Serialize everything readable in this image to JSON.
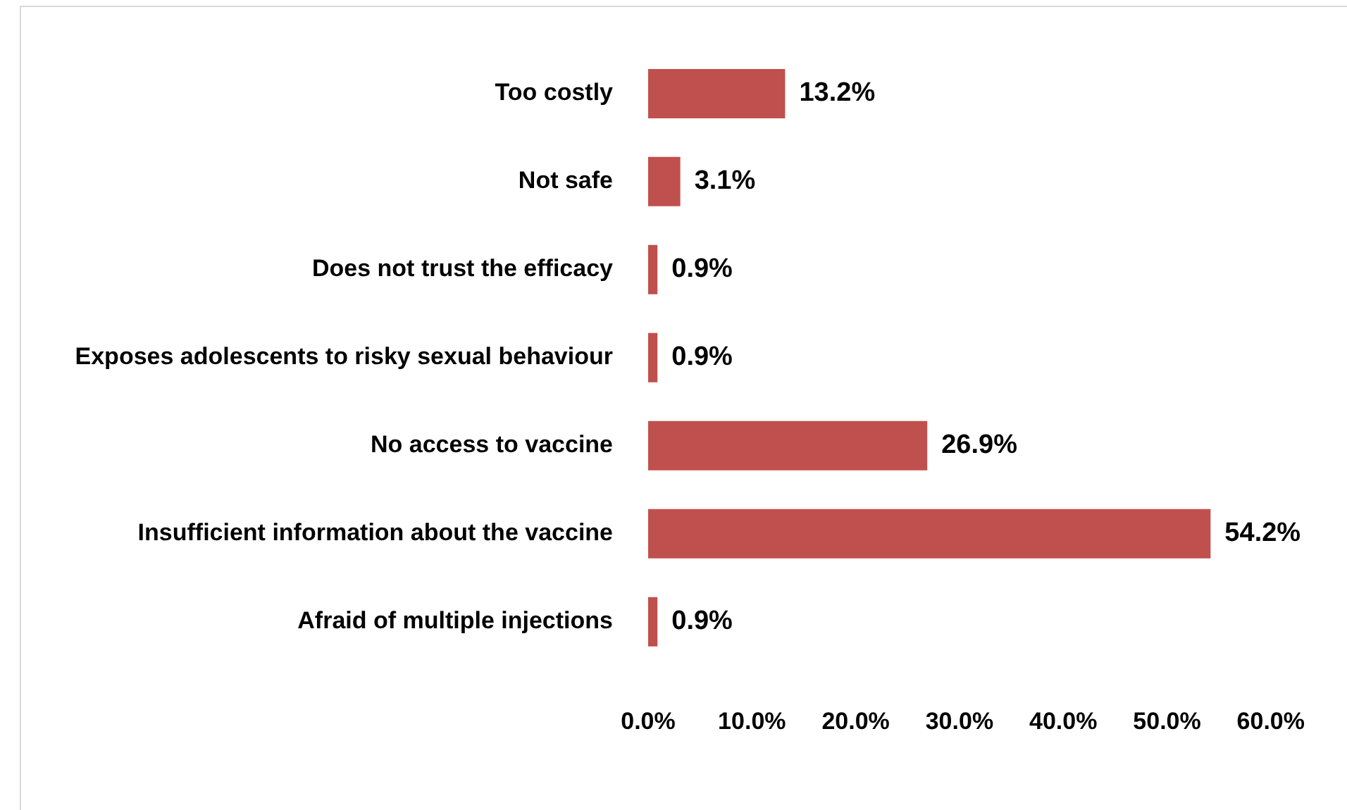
{
  "chart_data": {
    "type": "bar",
    "orientation": "horizontal",
    "categories": [
      "Too costly",
      "Not safe",
      "Does not trust the efficacy",
      "Exposes adolescents to risky sexual behaviour",
      "No access to vaccine",
      "Insufficient information about the vaccine",
      "Afraid of multiple injections"
    ],
    "values": [
      13.2,
      3.1,
      0.9,
      0.9,
      26.9,
      54.2,
      0.9
    ],
    "value_labels": [
      "13.2%",
      "3.1%",
      "0.9%",
      "0.9%",
      "26.9%",
      "54.2%",
      "0.9%"
    ],
    "color": "#c0504d",
    "xlim": [
      0,
      60
    ],
    "xticks": [
      {
        "value": 0,
        "label": "0.0%"
      },
      {
        "value": 10,
        "label": "10.0%"
      },
      {
        "value": 20,
        "label": "20.0%"
      },
      {
        "value": 30,
        "label": "30.0%"
      },
      {
        "value": 40,
        "label": "40.0%"
      },
      {
        "value": 50,
        "label": "50.0%"
      },
      {
        "value": 60,
        "label": "60.0%"
      }
    ],
    "grid": false,
    "legend": false
  }
}
